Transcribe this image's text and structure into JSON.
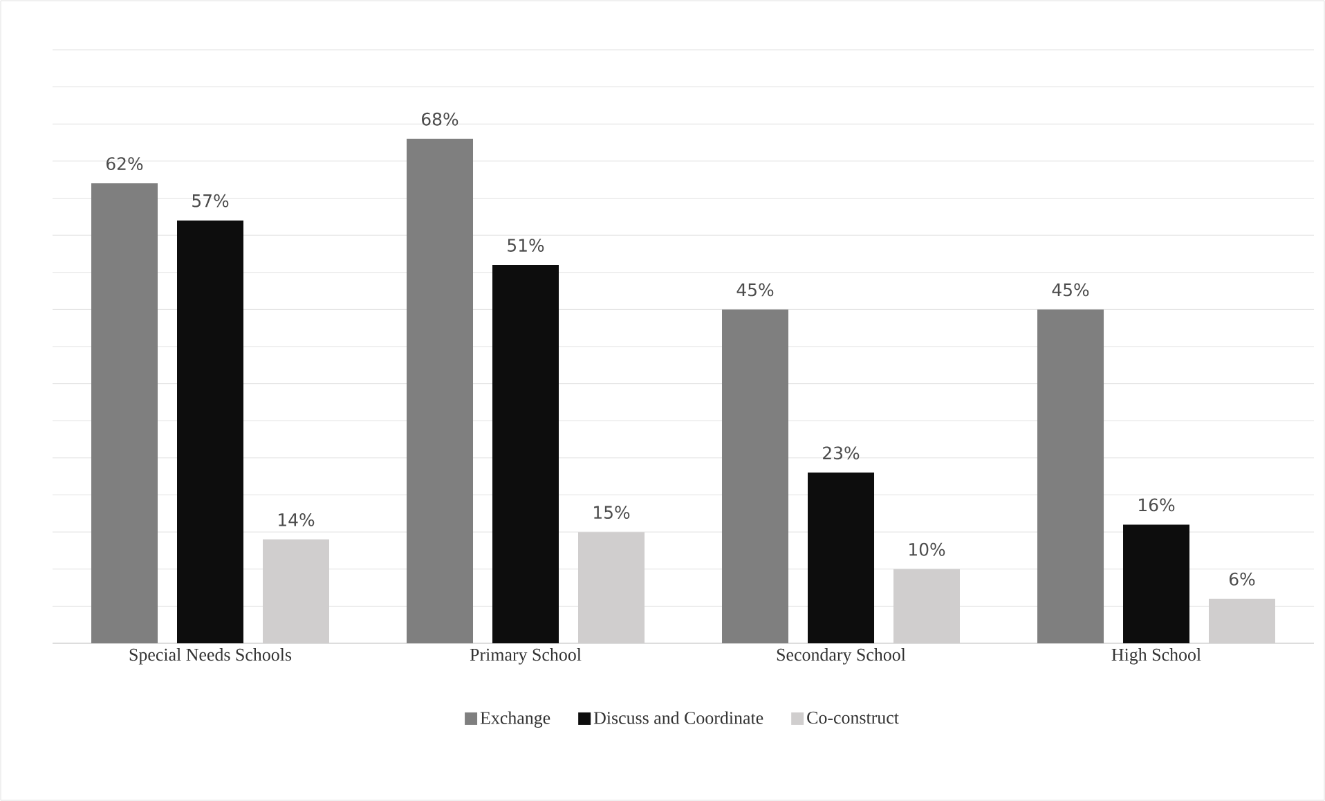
{
  "chart_data": {
    "type": "bar",
    "categories": [
      "Special Needs Schools",
      "Primary School",
      "Secondary School",
      "High School"
    ],
    "series": [
      {
        "name": "Exchange",
        "color": "#7f7f7f",
        "values": [
          62,
          68,
          45,
          45
        ],
        "value_labels": [
          "62%",
          "68%",
          "45%",
          "45%"
        ]
      },
      {
        "name": "Discuss and Coordinate",
        "color": "#0d0d0d",
        "values": [
          57,
          51,
          23,
          16
        ],
        "value_labels": [
          "57%",
          "51%",
          "23%",
          "16%"
        ]
      },
      {
        "name": "Co-construct",
        "color": "#d0cece",
        "values": [
          14,
          15,
          10,
          6
        ],
        "value_labels": [
          "14%",
          "15%",
          "10%",
          "6%"
        ]
      }
    ],
    "ylim": [
      0,
      80
    ],
    "tick_labels": "x",
    "grid": "y",
    "legend": "bottom"
  }
}
